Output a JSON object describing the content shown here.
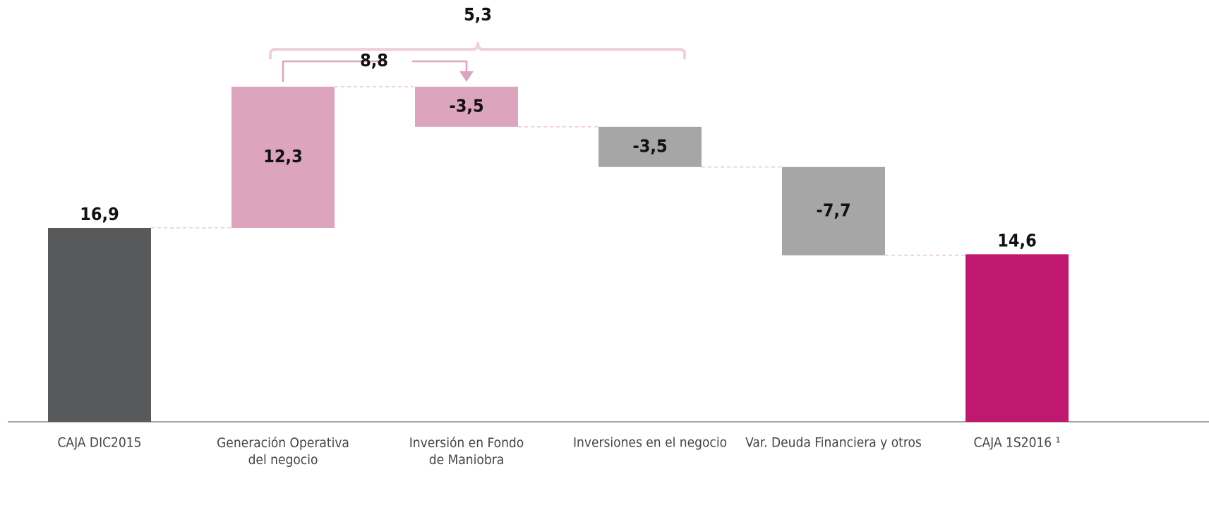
{
  "chart_data": {
    "type": "waterfall",
    "categories": [
      "CAJA DIC2015",
      "Generación Operativa\ndel negocio",
      "Inversión en Fondo\nde Maniobra",
      "Inversiones en el negocio",
      "Var. Deuda Financiera y otros",
      "CAJA 1S2016 ¹"
    ],
    "values": [
      16.9,
      12.3,
      -3.5,
      -3.5,
      -7.7,
      14.6
    ],
    "value_labels": [
      "16,9",
      "12,3",
      "-3,5",
      "-3,5",
      "-7,7",
      "14,6"
    ],
    "colors": [
      "#58595b",
      "#dca4bd",
      "#dca4bd",
      "#a6a6a7",
      "#a6a6a7",
      "#c0186e"
    ],
    "ylim": [
      0,
      36.75
    ],
    "annotations": [
      {
        "text": "8,8",
        "value": 8.8
      },
      {
        "text": "5,3",
        "value": 5.3
      }
    ]
  }
}
